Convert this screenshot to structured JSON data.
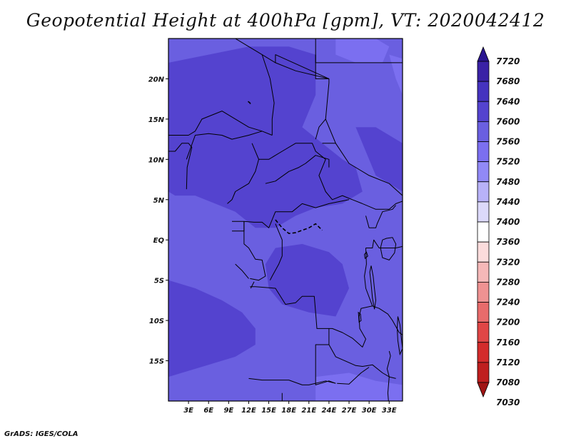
{
  "figure": {
    "title": "Geopotential Height at 400hPa [gpm], VT: 2020042412",
    "credit": "GrADS: IGES/COLA"
  },
  "map": {
    "lon_range": [
      0,
      35
    ],
    "lat_range": [
      -20,
      25
    ],
    "x_ticks": [
      {
        "value": 3,
        "label": "3E"
      },
      {
        "value": 6,
        "label": "6E"
      },
      {
        "value": 9,
        "label": "9E"
      },
      {
        "value": 12,
        "label": "12E"
      },
      {
        "value": 15,
        "label": "15E"
      },
      {
        "value": 18,
        "label": "18E"
      },
      {
        "value": 21,
        "label": "21E"
      },
      {
        "value": 24,
        "label": "24E"
      },
      {
        "value": 27,
        "label": "27E"
      },
      {
        "value": 30,
        "label": "30E"
      },
      {
        "value": 33,
        "label": "33E"
      }
    ],
    "y_ticks": [
      {
        "value": 20,
        "label": "20N"
      },
      {
        "value": 15,
        "label": "15N"
      },
      {
        "value": 10,
        "label": "10N"
      },
      {
        "value": 5,
        "label": "5N"
      },
      {
        "value": 0,
        "label": "EQ"
      },
      {
        "value": -5,
        "label": "5S"
      },
      {
        "value": -10,
        "label": "10S"
      },
      {
        "value": -15,
        "label": "15S"
      }
    ],
    "base_fill": "#6a5fe0",
    "field_regions": [
      {
        "level": "7560-7600",
        "color": "#6a5fe0",
        "points": [
          [
            0,
            25
          ],
          [
            35,
            25
          ],
          [
            35,
            -20
          ],
          [
            0,
            -20
          ]
        ]
      },
      {
        "level": "7600-7640",
        "color": "#5443cf",
        "points": [
          [
            0,
            22
          ],
          [
            6,
            23
          ],
          [
            12,
            24
          ],
          [
            18,
            24
          ],
          [
            22,
            23
          ],
          [
            22,
            18
          ],
          [
            20,
            14
          ],
          [
            23,
            12
          ],
          [
            26,
            10
          ],
          [
            28,
            9
          ],
          [
            29,
            6
          ],
          [
            26,
            4.5
          ],
          [
            22,
            4
          ],
          [
            19,
            3
          ],
          [
            16,
            1.5
          ],
          [
            13,
            1.5
          ],
          [
            10,
            3.5
          ],
          [
            7,
            4.5
          ],
          [
            4,
            5.5
          ],
          [
            1,
            5.5
          ],
          [
            0,
            6
          ]
        ]
      },
      {
        "level": "7600-7640",
        "color": "#5443cf",
        "points": [
          [
            28,
            14
          ],
          [
            31,
            14
          ],
          [
            33,
            13
          ],
          [
            35,
            12
          ],
          [
            35,
            6
          ],
          [
            33,
            7
          ],
          [
            31,
            8
          ]
        ]
      },
      {
        "level": "7600-7640",
        "color": "#5443cf",
        "points": [
          [
            16,
            -1
          ],
          [
            20,
            -0.5
          ],
          [
            24,
            -1.5
          ],
          [
            26,
            -3
          ],
          [
            27,
            -6
          ],
          [
            25,
            -9.5
          ],
          [
            21,
            -9
          ],
          [
            17,
            -8
          ],
          [
            15,
            -6
          ],
          [
            14.5,
            -3
          ]
        ]
      },
      {
        "level": "7600-7640",
        "color": "#5443cf",
        "points": [
          [
            0,
            -5
          ],
          [
            4,
            -6
          ],
          [
            8,
            -7.5
          ],
          [
            11,
            -9
          ],
          [
            13,
            -11
          ],
          [
            13,
            -13
          ],
          [
            10,
            -14.5
          ],
          [
            6,
            -15.5
          ],
          [
            2,
            -16.5
          ],
          [
            0,
            -17
          ]
        ]
      },
      {
        "level": "7520-7560",
        "color": "#7b6ff0",
        "points": [
          [
            25,
            25
          ],
          [
            31,
            25
          ],
          [
            33,
            24
          ],
          [
            32,
            22
          ],
          [
            28,
            22
          ],
          [
            25,
            23
          ]
        ]
      },
      {
        "level": "7520-7560",
        "color": "#7b6ff0",
        "points": [
          [
            33,
            23
          ],
          [
            35,
            22.5
          ],
          [
            35,
            18
          ],
          [
            34,
            20
          ]
        ]
      },
      {
        "level": "7520-7560",
        "color": "#7b6ff0",
        "points": [
          [
            22,
            -17
          ],
          [
            27,
            -16.5
          ],
          [
            31,
            -17.5
          ],
          [
            35,
            -18
          ],
          [
            35,
            -20
          ],
          [
            22,
            -20
          ]
        ]
      }
    ],
    "boundary_lines": [
      [
        [
          10,
          25
        ],
        [
          12,
          24
        ],
        [
          14,
          23
        ],
        [
          16,
          22
        ],
        [
          19,
          21
        ],
        [
          24,
          20
        ]
      ],
      [
        [
          0,
          13
        ],
        [
          3,
          13
        ],
        [
          4,
          13.5
        ],
        [
          5,
          15
        ],
        [
          8,
          16
        ],
        [
          12,
          14
        ],
        [
          14,
          13.5
        ],
        [
          15.5,
          13
        ]
      ],
      [
        [
          0,
          11
        ],
        [
          1,
          11
        ],
        [
          2,
          12
        ],
        [
          3,
          12
        ],
        [
          3.5,
          11.5
        ],
        [
          2.8,
          9
        ],
        [
          2.7,
          6.3
        ]
      ],
      [
        [
          2.7,
          10
        ],
        [
          4,
          13
        ],
        [
          6,
          13.2
        ],
        [
          8,
          13
        ],
        [
          9.5,
          12.5
        ],
        [
          12,
          13
        ],
        [
          14,
          13.5
        ]
      ],
      [
        [
          12.5,
          12
        ],
        [
          13.5,
          10
        ],
        [
          13,
          8.5
        ],
        [
          12,
          7
        ],
        [
          11,
          6.5
        ],
        [
          10,
          6
        ],
        [
          9.5,
          5
        ],
        [
          8.8,
          4.5
        ]
      ],
      [
        [
          13.5,
          10
        ],
        [
          15,
          10
        ],
        [
          17,
          11
        ],
        [
          19,
          12
        ],
        [
          21.5,
          12
        ],
        [
          22,
          11
        ],
        [
          23.5,
          10
        ],
        [
          22.5,
          8
        ],
        [
          23.5,
          6
        ],
        [
          24.5,
          5
        ],
        [
          26,
          5.5
        ],
        [
          27.5,
          5
        ],
        [
          29,
          4.5
        ]
      ],
      [
        [
          14.5,
          7
        ],
        [
          16,
          7.3
        ],
        [
          18,
          8.5
        ],
        [
          19.5,
          9
        ],
        [
          20.5,
          9.5
        ],
        [
          22,
          10.5
        ],
        [
          24,
          10
        ],
        [
          24,
          9
        ]
      ],
      [
        [
          15.5,
          13
        ],
        [
          15.5,
          15
        ],
        [
          15.8,
          17
        ],
        [
          15.2,
          20
        ],
        [
          14,
          23
        ]
      ],
      [
        [
          22,
          23
        ],
        [
          22,
          20
        ],
        [
          24,
          20
        ],
        [
          24,
          19.5
        ],
        [
          23.5,
          15
        ],
        [
          22.5,
          14
        ],
        [
          22,
          12.5
        ]
      ],
      [
        [
          16,
          22
        ],
        [
          16,
          23
        ],
        [
          24,
          20
        ]
      ],
      [
        [
          22,
          25
        ],
        [
          22,
          22
        ],
        [
          37,
          22
        ]
      ],
      [
        [
          23.5,
          15
        ],
        [
          25,
          12
        ],
        [
          27,
          9.5
        ],
        [
          30,
          8
        ],
        [
          33,
          7
        ],
        [
          35,
          5.5
        ]
      ],
      [
        [
          23,
          12
        ],
        [
          25,
          12
        ]
      ],
      [
        [
          29,
          4.5
        ],
        [
          31,
          3.8
        ],
        [
          33,
          3.8
        ],
        [
          34,
          4.5
        ],
        [
          35,
          4.8
        ]
      ],
      [
        [
          9.5,
          2.3
        ],
        [
          11.3,
          2.3
        ],
        [
          12.8,
          2.2
        ],
        [
          14,
          2.2
        ],
        [
          15,
          1.5
        ],
        [
          16,
          3.5
        ],
        [
          18.5,
          3.5
        ],
        [
          20,
          4.5
        ],
        [
          22,
          4
        ],
        [
          24,
          4.5
        ],
        [
          27,
          5
        ]
      ],
      [
        [
          9.5,
          1.1
        ],
        [
          11.3,
          1.1
        ],
        [
          11.3,
          2.3
        ]
      ],
      [
        [
          11.3,
          2.3
        ],
        [
          11.3,
          -0.5
        ],
        [
          12,
          -1
        ],
        [
          13,
          -2.4
        ],
        [
          14,
          -2.5
        ],
        [
          14.5,
          -4.5
        ],
        [
          13.5,
          -5
        ],
        [
          12.2,
          -4.8
        ]
      ],
      [
        [
          16,
          2
        ],
        [
          17,
          0
        ],
        [
          17,
          -2
        ],
        [
          16.5,
          -3
        ],
        [
          15.5,
          -4.5
        ],
        [
          15.2,
          -5
        ]
      ],
      [
        [
          12.2,
          -5.8
        ],
        [
          13,
          -5.8
        ],
        [
          16,
          -6
        ],
        [
          17.5,
          -8
        ],
        [
          19,
          -7.8
        ],
        [
          20,
          -7
        ],
        [
          21.8,
          -7
        ],
        [
          22,
          -9
        ],
        [
          22.2,
          -11
        ],
        [
          24,
          -11
        ],
        [
          24,
          -13
        ],
        [
          22,
          -13
        ],
        [
          22,
          -16
        ],
        [
          22,
          -18
        ],
        [
          24,
          -17.5
        ],
        [
          25,
          -17.8
        ]
      ],
      [
        [
          12,
          -17.2
        ],
        [
          14,
          -17.4
        ],
        [
          18,
          -17.4
        ],
        [
          20,
          -18
        ],
        [
          21,
          -18
        ],
        [
          23.5,
          -17.5
        ],
        [
          25,
          -17.8
        ]
      ],
      [
        [
          12.3,
          -6
        ],
        [
          12.8,
          -5.2
        ]
      ],
      [
        [
          29.5,
          -1
        ],
        [
          29.6,
          -3
        ],
        [
          29.3,
          -4.5
        ],
        [
          29.5,
          -6
        ],
        [
          30.5,
          -8.2
        ]
      ],
      [
        [
          29.5,
          -1
        ],
        [
          30.5,
          -1
        ],
        [
          30.7,
          0
        ],
        [
          31.5,
          -1
        ],
        [
          33,
          -1
        ],
        [
          34,
          -1
        ],
        [
          35,
          -0.8
        ]
      ],
      [
        [
          29.5,
          3
        ],
        [
          30,
          1.5
        ],
        [
          31,
          1.5
        ],
        [
          31.2,
          2
        ],
        [
          32,
          3.5
        ],
        [
          33.5,
          3.8
        ],
        [
          34,
          4.3
        ]
      ],
      [
        [
          30.5,
          -8.2
        ],
        [
          31.5,
          -8.5
        ],
        [
          32.8,
          -9.2
        ],
        [
          33.5,
          -10
        ],
        [
          34.5,
          -11.5
        ],
        [
          35,
          -11.8
        ]
      ],
      [
        [
          30.5,
          -8.2
        ],
        [
          28.8,
          -8.5
        ],
        [
          28.5,
          -9.5
        ],
        [
          28.6,
          -11
        ],
        [
          29.5,
          -12.3
        ],
        [
          29,
          -13.3
        ],
        [
          27.5,
          -12.2
        ],
        [
          26,
          -11.5
        ],
        [
          24.5,
          -11
        ],
        [
          24,
          -11
        ]
      ],
      [
        [
          24,
          -13
        ],
        [
          25,
          -14.5
        ],
        [
          28,
          -15.6
        ],
        [
          29,
          -15.7
        ],
        [
          30.5,
          -15.5
        ],
        [
          32,
          -16.5
        ],
        [
          33,
          -17
        ],
        [
          34,
          -17.2
        ]
      ],
      [
        [
          25.2,
          -17.8
        ],
        [
          27,
          -17.9
        ],
        [
          28.8,
          -16.5
        ],
        [
          30,
          -15.8
        ]
      ],
      [
        [
          33,
          -13.8
        ],
        [
          33.2,
          -14.4
        ],
        [
          32.7,
          -16
        ],
        [
          33,
          -17
        ],
        [
          32.8,
          -19
        ],
        [
          32.9,
          -20
        ]
      ],
      [
        [
          17,
          -19
        ],
        [
          17,
          -20
        ],
        [
          17.5,
          -20.5
        ]
      ],
      [
        [
          10,
          -3
        ],
        [
          11,
          -3.8
        ],
        [
          12,
          -4.8
        ]
      ]
    ],
    "lakes": [
      [
        [
          32.6,
          0.2
        ],
        [
          33.5,
          0.3
        ],
        [
          34,
          -0.5
        ],
        [
          33.8,
          -1.6
        ],
        [
          33,
          -2.5
        ],
        [
          32,
          -2.2
        ],
        [
          31.7,
          -1
        ],
        [
          32,
          0
        ]
      ],
      [
        [
          30.3,
          -3.2
        ],
        [
          30.6,
          -4.5
        ],
        [
          30.8,
          -6
        ],
        [
          31,
          -7.5
        ],
        [
          30.8,
          -8.6
        ],
        [
          30.5,
          -7.2
        ],
        [
          30.3,
          -5.5
        ],
        [
          30.1,
          -4
        ]
      ],
      [
        [
          34.3,
          -9.5
        ],
        [
          34.6,
          -10.5
        ],
        [
          34.8,
          -12
        ],
        [
          35,
          -13.5
        ],
        [
          34.6,
          -14.2
        ],
        [
          34.3,
          -12.5
        ],
        [
          34.2,
          -11
        ]
      ],
      [
        [
          28.4,
          -9
        ],
        [
          28.7,
          -9.2
        ],
        [
          28.8,
          -10
        ],
        [
          28.5,
          -10.2
        ]
      ],
      [
        [
          29.6,
          -1.5
        ],
        [
          29.8,
          -2
        ],
        [
          29.4,
          -2.3
        ],
        [
          29.3,
          -1.8
        ]
      ]
    ],
    "rivers": [
      [
        [
          16,
          2.5
        ],
        [
          17,
          1.5
        ],
        [
          18,
          0.8
        ],
        [
          19,
          0.9
        ],
        [
          21,
          1.5
        ],
        [
          22,
          2
        ],
        [
          23,
          1.2
        ]
      ],
      [
        [
          11.9,
          17.2
        ],
        [
          12.2,
          17
        ],
        [
          12.3,
          16.7
        ]
      ]
    ]
  },
  "colorbar": {
    "labels": [
      "7720",
      "7680",
      "7640",
      "7600",
      "7560",
      "7520",
      "7480",
      "7440",
      "7400",
      "7360",
      "7320",
      "7280",
      "7240",
      "7200",
      "7160",
      "7120",
      "7080",
      "7030"
    ],
    "colors": [
      "#2a1590",
      "#3a22a6",
      "#4533bf",
      "#5443cf",
      "#6a5fe0",
      "#7b6ff0",
      "#9189f6",
      "#b8b2f8",
      "#dcd9fa",
      "#ffffff",
      "#fbdcdc",
      "#f5b8b8",
      "#ef9292",
      "#e86b6b",
      "#e04646",
      "#d32c2c",
      "#bf1f1f",
      "#a01414"
    ]
  }
}
